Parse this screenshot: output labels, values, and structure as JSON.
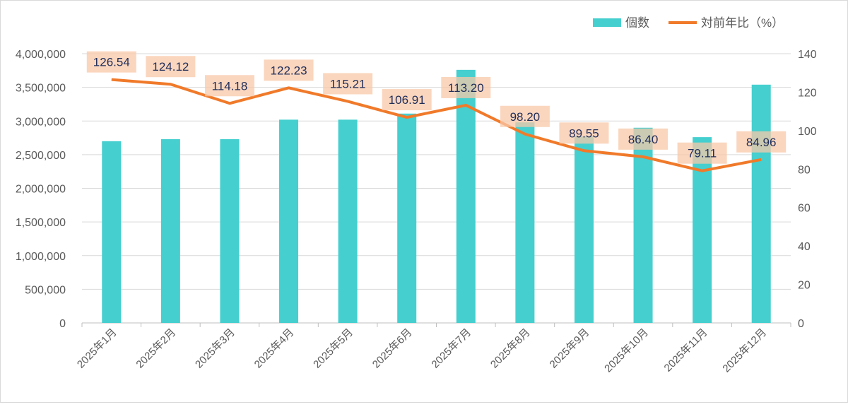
{
  "chart_data": {
    "type": "bar+line",
    "categories": [
      "2025年1月",
      "2025年2月",
      "2025年3月",
      "2025年4月",
      "2025年5月",
      "2025年6月",
      "2025年7月",
      "2025年8月",
      "2025年9月",
      "2025年10月",
      "2025年11月",
      "2025年12月"
    ],
    "series": [
      {
        "name": "個数",
        "type": "bar",
        "axis": "left",
        "color": "#45CFCF",
        "values": [
          2700000,
          2730000,
          2730000,
          3020000,
          3020000,
          3110000,
          3760000,
          2980000,
          2770000,
          2900000,
          2760000,
          3540000
        ]
      },
      {
        "name": "対前年比（%）",
        "type": "line",
        "axis": "right",
        "color": "#F07A2A",
        "values": [
          126.54,
          124.12,
          114.18,
          122.23,
          115.21,
          106.91,
          113.2,
          98.2,
          89.55,
          86.4,
          79.11,
          84.96
        ],
        "data_labels": [
          "126.54",
          "124.12",
          "114.18",
          "122.23",
          "115.21",
          "106.91",
          "113.20",
          "98.20",
          "89.55",
          "86.40",
          "79.11",
          "84.96"
        ]
      }
    ],
    "y_left": {
      "range": [
        0,
        4000000
      ],
      "ticks": [
        "0",
        "500,000",
        "1,000,000",
        "1,500,000",
        "2,000,000",
        "2,500,000",
        "3,000,000",
        "3,500,000",
        "4,000,000"
      ]
    },
    "y_right": {
      "range": [
        0,
        140
      ],
      "ticks": [
        "0",
        "20",
        "40",
        "60",
        "80",
        "100",
        "120",
        "140"
      ]
    },
    "grid": true,
    "legend": "top-right",
    "label_box_color": "#F8C8A8",
    "label_text_color": "#1F2D5A"
  }
}
